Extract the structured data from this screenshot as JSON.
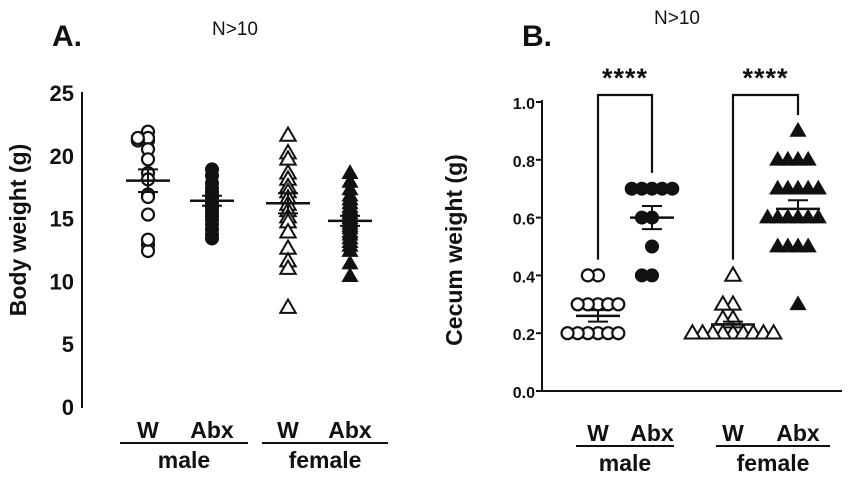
{
  "chart_data": [
    {
      "type": "scatter",
      "panel_label": "A.",
      "subtitle": "N>10",
      "ylabel": "Body weight (g)",
      "ylim": [
        0,
        25
      ],
      "yticks": [
        "0",
        "5",
        "10",
        "15",
        "20",
        "25"
      ],
      "categories": [
        "W",
        "Abx",
        "W",
        "Abx"
      ],
      "sex_labels": [
        "male",
        "female"
      ],
      "series": [
        {
          "name": "male W",
          "marker": "open-circle",
          "mean": 18.1,
          "sem": 0.9,
          "values": [
            22.0,
            21.3,
            21.5,
            21.3,
            21.5,
            20.6,
            19.8,
            18.7,
            18.2,
            17.0,
            16.8,
            15.4,
            13.0,
            12.5,
            13.4
          ]
        },
        {
          "name": "male Abx",
          "marker": "filled-circle",
          "mean": 16.5,
          "sem": 0.4,
          "values": [
            19.0,
            18.5,
            17.9,
            17.5,
            17.2,
            16.9,
            16.7,
            16.5,
            16.3,
            16.1,
            15.9,
            15.6,
            15.3,
            15.0,
            14.6,
            14.2,
            13.8,
            13.5
          ]
        },
        {
          "name": "female W",
          "marker": "open-triangle",
          "mean": 16.3,
          "sem": 0.8,
          "values": [
            21.7,
            20.3,
            19.8,
            18.7,
            18.2,
            17.6,
            17.2,
            16.7,
            16.2,
            15.7,
            15.2,
            14.8,
            14.0,
            12.7,
            11.7,
            11.1,
            8.0
          ]
        },
        {
          "name": "female Abx",
          "marker": "filled-triangle",
          "mean": 14.9,
          "sem": 0.4,
          "values": [
            18.7,
            18.0,
            17.4,
            16.9,
            16.6,
            16.3,
            16.0,
            15.8,
            15.5,
            15.3,
            15.1,
            14.9,
            14.7,
            14.5,
            14.3,
            14.0,
            13.8,
            13.5,
            13.2,
            12.9,
            12.5,
            11.5,
            10.5
          ]
        }
      ]
    },
    {
      "type": "scatter",
      "panel_label": "B.",
      "subtitle": "N>10",
      "ylabel": "Cecum weight (g)",
      "ylim": [
        0,
        1.0
      ],
      "yticks": [
        "0.0",
        "0.2",
        "0.4",
        "0.6",
        "0.8",
        "1.0"
      ],
      "categories": [
        "W",
        "Abx",
        "W",
        "Abx"
      ],
      "sex_labels": [
        "male",
        "female"
      ],
      "significance": [
        {
          "groups": [
            "male W",
            "male Abx"
          ],
          "label": "****"
        },
        {
          "groups": [
            "female W",
            "female Abx"
          ],
          "label": "****"
        }
      ],
      "series": [
        {
          "name": "male W",
          "marker": "open-circle",
          "mean": 0.26,
          "sem": 0.02,
          "values": [
            0.4,
            0.4,
            0.3,
            0.3,
            0.3,
            0.3,
            0.3,
            0.2,
            0.2,
            0.2,
            0.2,
            0.2,
            0.2
          ]
        },
        {
          "name": "male Abx",
          "marker": "filled-circle",
          "mean": 0.6,
          "sem": 0.04,
          "values": [
            0.7,
            0.7,
            0.7,
            0.7,
            0.7,
            0.6,
            0.6,
            0.5,
            0.4,
            0.4
          ]
        },
        {
          "name": "female W",
          "marker": "open-triangle",
          "mean": 0.23,
          "sem": 0.01,
          "values": [
            0.4,
            0.3,
            0.3,
            0.25,
            0.25,
            0.2,
            0.2,
            0.2,
            0.2,
            0.2,
            0.2,
            0.2,
            0.2,
            0.2
          ]
        },
        {
          "name": "female Abx",
          "marker": "filled-triangle",
          "mean": 0.63,
          "sem": 0.03,
          "values": [
            0.9,
            0.8,
            0.8,
            0.8,
            0.8,
            0.7,
            0.7,
            0.7,
            0.7,
            0.7,
            0.6,
            0.6,
            0.6,
            0.6,
            0.6,
            0.6,
            0.5,
            0.5,
            0.5,
            0.5,
            0.3
          ]
        }
      ]
    }
  ]
}
